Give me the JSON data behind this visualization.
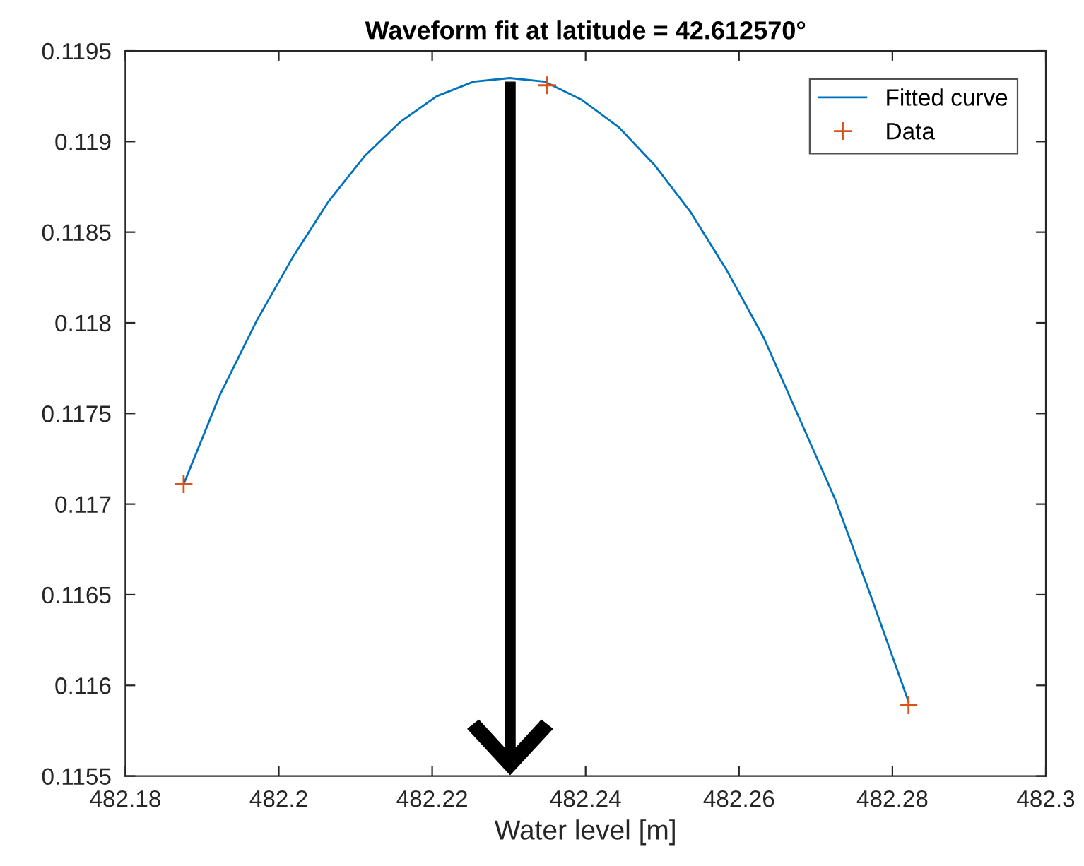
{
  "chart_data": {
    "type": "line",
    "title": "Waveform fit at latitude = 42.612570°",
    "xlabel": "Water level [m]",
    "series": [
      {
        "name": "Fitted curve",
        "color": "#0072bd",
        "marker": "none",
        "x": [
          482.1876,
          482.1923,
          482.1971,
          482.2018,
          482.2065,
          482.2112,
          482.2159,
          482.2206,
          482.2254,
          482.2301,
          482.2347,
          482.2395,
          482.2443,
          482.249,
          482.2537,
          482.2584,
          482.2632,
          482.2679,
          482.2726,
          482.2773,
          482.2821
        ],
        "values": [
          0.11711,
          0.1176,
          0.11801,
          0.11836,
          0.11867,
          0.11892,
          0.11911,
          0.11925,
          0.11933,
          0.11935,
          0.11933,
          0.11923,
          0.11908,
          0.11887,
          0.11861,
          0.11829,
          0.11792,
          0.11747,
          0.11702,
          0.11648,
          0.11591
        ]
      },
      {
        "name": "Data",
        "type": "scatter",
        "color": "#d95319",
        "marker": "cross",
        "x": [
          482.1876,
          482.235,
          482.2821
        ],
        "values": [
          0.11711,
          0.11931,
          0.11589
        ]
      }
    ],
    "xlim": [
      482.18,
      482.3
    ],
    "xticks": [
      482.18,
      482.2,
      482.22,
      482.24,
      482.26,
      482.28,
      482.3
    ],
    "ylim": [
      0.1155,
      0.1195
    ],
    "yticks": [
      0.1155,
      0.116,
      0.1165,
      0.117,
      0.1175,
      0.118,
      0.1185,
      0.119,
      0.1195
    ],
    "grid": false,
    "legend": "top right"
  }
}
